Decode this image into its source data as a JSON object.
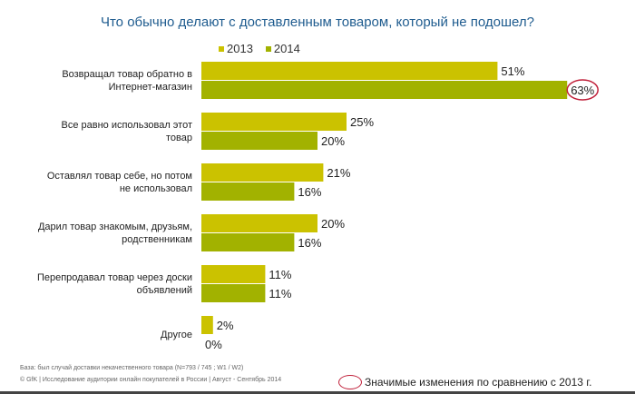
{
  "chart_data": {
    "type": "bar",
    "orientation": "horizontal",
    "title": "Что обычно делают с доставленным товаром, который не подошел?",
    "categories": [
      "Возвращал товар обратно в Интернет-магазин",
      "Все равно использовал этот товар",
      "Оставлял товар себе, но потом не использовал",
      "Дарил товар знакомым, друзьям, родственникам",
      "Перепродавал товар через доски объявлений",
      "Другое"
    ],
    "series": [
      {
        "name": "2013",
        "color": "#cbc200",
        "values": [
          51,
          25,
          21,
          20,
          11,
          2
        ]
      },
      {
        "name": "2014",
        "color": "#a2b200",
        "values": [
          63,
          20,
          16,
          16,
          11,
          0
        ]
      }
    ],
    "significant": [
      {
        "series": "2014",
        "category_index": 0
      }
    ],
    "xlim": [
      0,
      70
    ],
    "legend_position": "top"
  },
  "footer": {
    "base": "База: был случай доставки некачественного товара (N=793 / 745 ; W1 / W2)",
    "source": "© GfK | Исследование аудитории онлайн покупателей в России | Август - Сентябрь 2014",
    "significance_note": "Значимые изменения  по сравнению с 2013 г."
  },
  "colors": {
    "title": "#1f5c8f",
    "marker": "#c0203a"
  }
}
